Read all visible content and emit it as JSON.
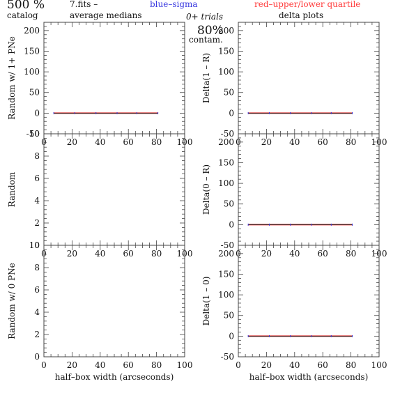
{
  "header": {
    "catalog_value": "500 %",
    "catalog_label": "catalog",
    "file_label": "7.fits  –",
    "medians_label": "average medians",
    "legend_blue": "blue–sigma",
    "legend_red": "red–upper/lower quartile",
    "trials_label": "0+ trials",
    "contam_value": "80%",
    "contam_label": "contam.",
    "delta_title": "delta plots"
  },
  "colors": {
    "blue": "#3a3ae0",
    "red": "#ff3b3b",
    "axis": "#444444",
    "line": "#222222"
  },
  "chart_data": [
    {
      "type": "line",
      "panel": "left-top",
      "ylabel": "Random w/ 1+ PNe",
      "xlabel": "",
      "xlim": [
        0,
        100
      ],
      "ylim": [
        -50,
        220
      ],
      "xticks": [
        0,
        20,
        40,
        60,
        80,
        100
      ],
      "yticks": [
        -50,
        0,
        50,
        100,
        150,
        200
      ],
      "x": [
        7,
        22,
        37,
        52,
        66,
        81
      ],
      "y": [
        0,
        0,
        0,
        0,
        0,
        0
      ],
      "lower": [
        -1,
        -1,
        -1,
        -1,
        -1,
        -1
      ],
      "upper": [
        1,
        1,
        1,
        1,
        1,
        1
      ]
    },
    {
      "type": "line",
      "panel": "left-middle",
      "ylabel": "Random",
      "xlabel": "",
      "xlim": [
        0,
        100
      ],
      "ylim": [
        0,
        10
      ],
      "xticks": [
        0,
        20,
        40,
        60,
        80,
        100
      ],
      "yticks": [
        0,
        2,
        4,
        6,
        8,
        10
      ],
      "x": [],
      "y": []
    },
    {
      "type": "line",
      "panel": "left-bottom",
      "ylabel": "Random w/ 0 PNe",
      "xlabel": "half–box width (arcseconds)",
      "xlim": [
        0,
        100
      ],
      "ylim": [
        0,
        10
      ],
      "xticks": [
        0,
        20,
        40,
        60,
        80,
        100
      ],
      "yticks": [
        0,
        2,
        4,
        6,
        8,
        10
      ],
      "x": [],
      "y": []
    },
    {
      "type": "line",
      "panel": "right-top",
      "ylabel": "Delta(1 – R)",
      "xlabel": "",
      "xlim": [
        0,
        100
      ],
      "ylim": [
        -50,
        220
      ],
      "xticks": [
        0,
        20,
        40,
        60,
        80,
        100
      ],
      "yticks": [
        -50,
        0,
        50,
        100,
        150,
        200
      ],
      "x": [
        7,
        22,
        37,
        52,
        66,
        81
      ],
      "y": [
        0,
        0,
        0,
        0,
        0,
        0
      ],
      "lower": [
        -1,
        -1,
        -1,
        -1,
        -1,
        -1
      ],
      "upper": [
        1,
        1,
        1,
        1,
        1,
        1
      ]
    },
    {
      "type": "line",
      "panel": "right-middle",
      "ylabel": "Delta(0 – R)",
      "xlabel": "",
      "xlim": [
        0,
        100
      ],
      "ylim": [
        -50,
        220
      ],
      "xticks": [
        0,
        20,
        40,
        60,
        80,
        100
      ],
      "yticks": [
        -50,
        0,
        50,
        100,
        150,
        200
      ],
      "x": [
        7,
        22,
        37,
        52,
        66,
        81
      ],
      "y": [
        0,
        0,
        0,
        0,
        0,
        0
      ],
      "lower": [
        -1,
        -1,
        -1,
        -1,
        -1,
        -1
      ],
      "upper": [
        1,
        1,
        1,
        1,
        1,
        1
      ]
    },
    {
      "type": "line",
      "panel": "right-bottom",
      "ylabel": "Delta(1 – 0)",
      "xlabel": "half–box width (arcseconds)",
      "xlim": [
        0,
        100
      ],
      "ylim": [
        -50,
        220
      ],
      "xticks": [
        0,
        20,
        40,
        60,
        80,
        100
      ],
      "yticks": [
        -50,
        0,
        50,
        100,
        150,
        200
      ],
      "x": [
        7,
        22,
        37,
        52,
        66,
        81
      ],
      "y": [
        0,
        0,
        0,
        0,
        0,
        0
      ],
      "lower": [
        -1,
        -1,
        -1,
        -1,
        -1,
        -1
      ],
      "upper": [
        1,
        1,
        1,
        1,
        1,
        1
      ]
    }
  ]
}
